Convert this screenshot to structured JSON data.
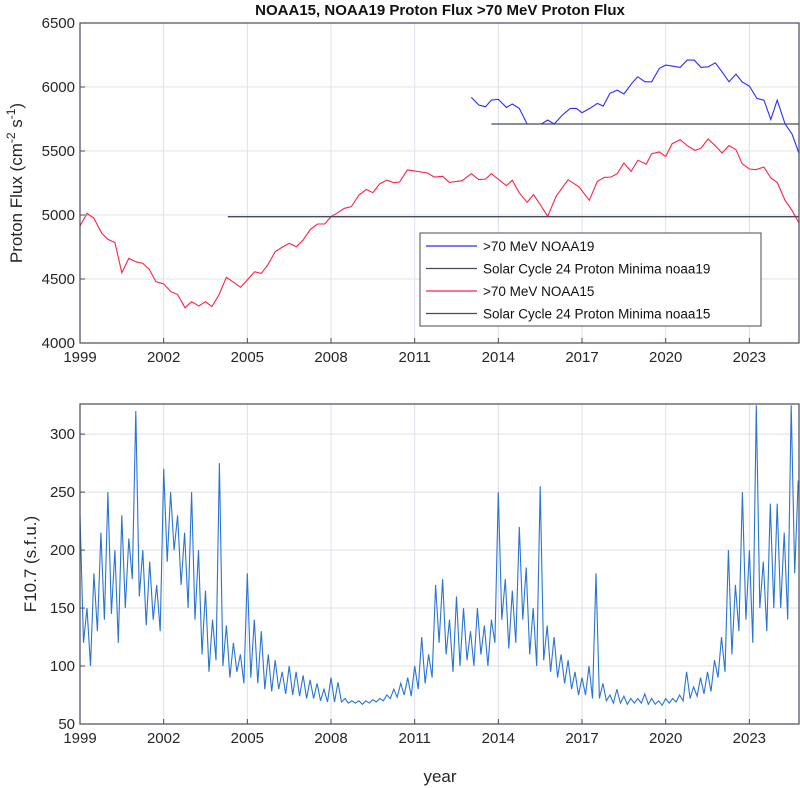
{
  "chart_data": [
    {
      "type": "line",
      "title": "NOAA15, NOAA19 Proton Flux >70 MeV Proton Flux",
      "xlabel": "",
      "ylabel": "Proton Flux (cm",
      "ylabel_parts": [
        "Proton Flux (cm",
        "-2",
        " s",
        "-1",
        ")"
      ],
      "xlim": [
        1999,
        2024.78
      ],
      "ylim": [
        4000,
        6500
      ],
      "xticks": [
        1999,
        2002,
        2005,
        2008,
        2011,
        2014,
        2017,
        2020,
        2023
      ],
      "yticks": [
        4000,
        4500,
        5000,
        5500,
        6000,
        6500
      ],
      "grid": true,
      "legend_position": "lower-right",
      "series": [
        {
          "name": ">70 MeV NOAA19",
          "color": "#2b2bff",
          "x": [
            2013.03,
            2013.3,
            2013.54,
            2013.75,
            2014.0,
            2014.29,
            2014.5,
            2014.75,
            2015.03,
            2015.54,
            2015.77,
            2016.0,
            2016.3,
            2016.58,
            2016.8,
            2017.0,
            2017.28,
            2017.55,
            2017.76,
            2018.0,
            2018.26,
            2018.5,
            2018.8,
            2019.0,
            2019.26,
            2019.5,
            2019.77,
            2020.0,
            2020.23,
            2020.52,
            2020.77,
            2021.02,
            2021.27,
            2021.52,
            2021.78,
            2022.02,
            2022.27,
            2022.52,
            2022.74,
            2023.0,
            2023.27,
            2023.52,
            2023.77,
            2024.0,
            2024.28,
            2024.53,
            2024.78
          ],
          "y": [
            5919,
            5859,
            5846,
            5898,
            5904,
            5841,
            5867,
            5833,
            5711,
            5711,
            5742,
            5711,
            5781,
            5833,
            5833,
            5799,
            5833,
            5872,
            5851,
            5950,
            5976,
            5945,
            6033,
            6080,
            6041,
            6041,
            6145,
            6171,
            6163,
            6153,
            6210,
            6210,
            6153,
            6158,
            6189,
            6119,
            6041,
            6101,
            6041,
            6007,
            5911,
            5898,
            5747,
            5898,
            5711,
            5633,
            5482
          ]
        },
        {
          "name": "Solar Cycle 24 Proton Minima noaa19",
          "color": "#454b5a",
          "x": [
            2013.75,
            2024.78
          ],
          "y": [
            5711,
            5711
          ]
        },
        {
          "name": ">70 MeV NOAA15",
          "color": "#ff2244",
          "x": [
            1999.0,
            1999.25,
            1999.5,
            1999.78,
            2000.0,
            2000.25,
            2000.5,
            2000.75,
            2001.0,
            2001.25,
            2001.48,
            2001.72,
            2002.0,
            2002.26,
            2002.5,
            2002.76,
            2003.0,
            2003.26,
            2003.5,
            2003.73,
            2003.98,
            2004.25,
            2004.48,
            2004.76,
            2005.0,
            2005.26,
            2005.5,
            2005.73,
            2006.0,
            2006.24,
            2006.5,
            2006.76,
            2007.0,
            2007.26,
            2007.52,
            2007.77,
            2008.0,
            2008.24,
            2008.48,
            2008.73,
            2009.0,
            2009.27,
            2009.5,
            2009.74,
            2010.0,
            2010.24,
            2010.46,
            2010.74,
            2011.46,
            2011.7,
            2012.0,
            2012.25,
            2012.7,
            2013.03,
            2013.3,
            2013.54,
            2013.75,
            2014.29,
            2014.5,
            2014.75,
            2015.03,
            2015.26,
            2015.5,
            2015.77,
            2016.07,
            2016.5,
            2016.9,
            2017.26,
            2017.55,
            2017.8,
            2018.04,
            2018.26,
            2018.5,
            2018.76,
            2019.0,
            2019.3,
            2019.5,
            2019.77,
            2020.0,
            2020.23,
            2020.52,
            2020.77,
            2021.05,
            2021.27,
            2021.52,
            2021.8,
            2022.02,
            2022.27,
            2022.52,
            2022.74,
            2023.0,
            2023.24,
            2023.52,
            2023.77,
            2024.0,
            2024.28,
            2024.53,
            2024.78
          ],
          "y": [
            4914,
            5013,
            4974,
            4857,
            4810,
            4784,
            4549,
            4661,
            4635,
            4622,
            4576,
            4479,
            4461,
            4401,
            4380,
            4276,
            4323,
            4289,
            4323,
            4284,
            4375,
            4513,
            4479,
            4435,
            4492,
            4557,
            4544,
            4609,
            4713,
            4747,
            4778,
            4752,
            4805,
            4888,
            4930,
            4930,
            4987,
            5018,
            5052,
            5065,
            5156,
            5200,
            5174,
            5242,
            5273,
            5252,
            5258,
            5352,
            5328,
            5297,
            5302,
            5255,
            5268,
            5323,
            5276,
            5281,
            5323,
            5229,
            5271,
            5172,
            5099,
            5159,
            5081,
            4990,
            5146,
            5276,
            5219,
            5115,
            5263,
            5294,
            5297,
            5323,
            5406,
            5341,
            5427,
            5398,
            5479,
            5492,
            5458,
            5557,
            5589,
            5542,
            5505,
            5523,
            5594,
            5536,
            5484,
            5542,
            5510,
            5401,
            5359,
            5354,
            5375,
            5289,
            5255,
            5115,
            5036,
            4937
          ]
        },
        {
          "name": "Solar Cycle 24 Proton Minima noaa15",
          "color": "#454b5a",
          "x": [
            2004.3,
            2024.78
          ],
          "y": [
            4987,
            4987
          ]
        }
      ]
    },
    {
      "type": "line",
      "title": "",
      "xlabel": "year",
      "ylabel": "F10.7 (s.f.u.)",
      "xlim": [
        1999,
        2024.78
      ],
      "ylim": [
        50,
        326
      ],
      "xticks": [
        1999,
        2002,
        2005,
        2008,
        2011,
        2014,
        2017,
        2020,
        2023
      ],
      "yticks": [
        50,
        100,
        150,
        200,
        250,
        300
      ],
      "grid": true,
      "series": [
        {
          "name": "F10.7",
          "color": "#2a74d2",
          "x_start": 1999,
          "x_step": 0.125,
          "y": [
            230,
            120,
            150,
            100,
            180,
            130,
            215,
            140,
            250,
            145,
            200,
            120,
            230,
            150,
            210,
            175,
            320,
            160,
            200,
            135,
            190,
            140,
            170,
            130,
            270,
            190,
            250,
            200,
            230,
            170,
            215,
            150,
            250,
            140,
            200,
            110,
            165,
            95,
            140,
            105,
            275,
            100,
            135,
            90,
            120,
            95,
            110,
            85,
            180,
            90,
            140,
            85,
            130,
            80,
            110,
            78,
            105,
            80,
            95,
            76,
            100,
            75,
            95,
            74,
            92,
            72,
            88,
            72,
            85,
            70,
            80,
            69,
            90,
            69,
            86,
            69,
            72,
            68,
            70,
            68,
            70,
            67,
            70,
            68,
            71,
            69,
            72,
            70,
            75,
            72,
            80,
            73,
            85,
            75,
            90,
            74,
            100,
            80,
            125,
            85,
            110,
            90,
            170,
            120,
            175,
            110,
            140,
            95,
            160,
            100,
            150,
            105,
            130,
            100,
            150,
            110,
            135,
            100,
            140,
            120,
            250,
            140,
            175,
            115,
            165,
            120,
            220,
            140,
            185,
            110,
            150,
            100,
            255,
            105,
            135,
            95,
            125,
            90,
            110,
            85,
            105,
            80,
            95,
            75,
            90,
            75,
            100,
            72,
            180,
            72,
            85,
            70,
            75,
            68,
            80,
            68,
            74,
            67,
            72,
            68,
            72,
            68,
            76,
            67,
            72,
            67,
            70,
            66,
            72,
            68,
            72,
            69,
            75,
            70,
            95,
            72,
            82,
            74,
            90,
            76,
            95,
            78,
            105,
            90,
            125,
            95,
            200,
            110,
            170,
            130,
            250,
            140,
            200,
            120,
            325,
            150,
            190,
            130,
            240,
            150,
            240,
            150,
            215,
            140,
            325,
            180,
            260
          ]
        }
      ]
    }
  ]
}
